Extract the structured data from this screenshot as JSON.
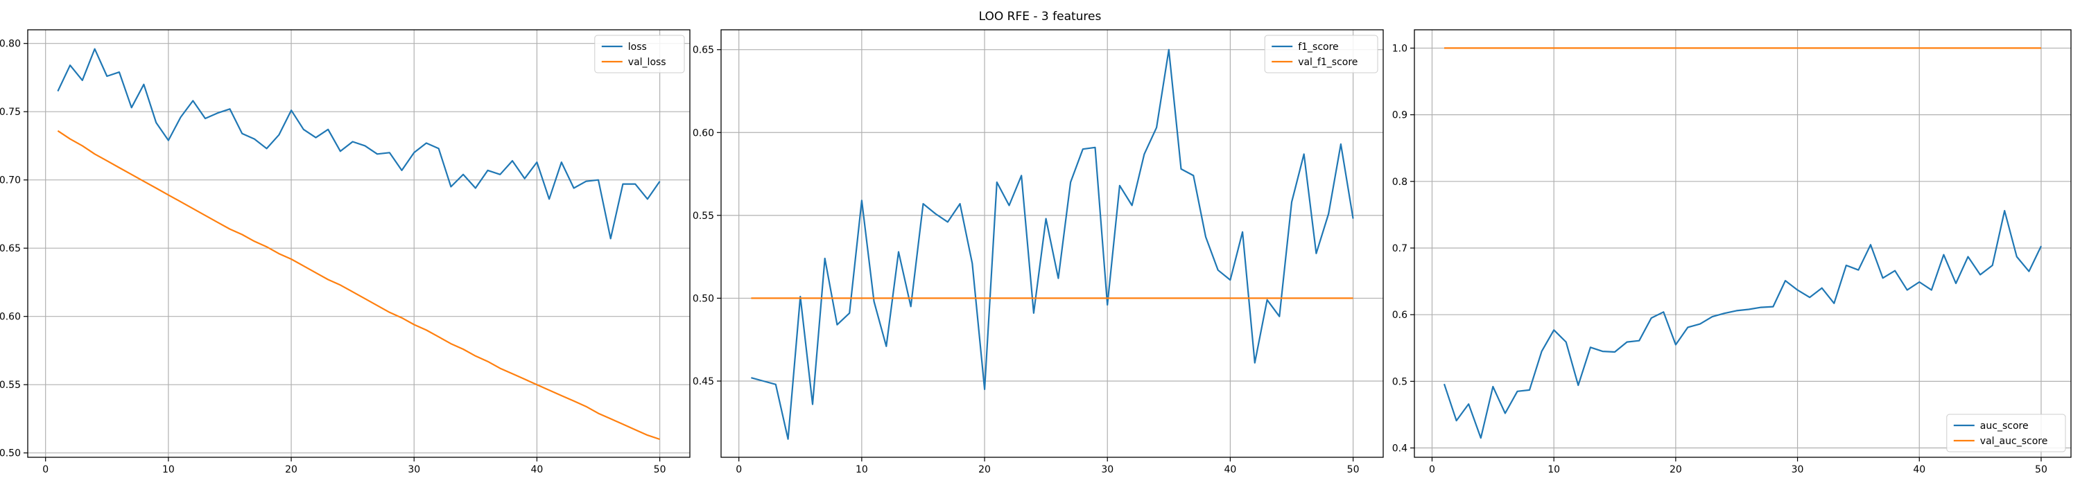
{
  "figure": {
    "suptitle": "LOO RFE - 3 features"
  },
  "colors": {
    "series1": "#1f77b4",
    "series2": "#ff7f0e",
    "grid": "#b0b0b0"
  },
  "chart_data": [
    {
      "type": "line",
      "xlim": [
        -1.45,
        52.45
      ],
      "ylim": [
        0.4968,
        0.81
      ],
      "xticks": [
        0,
        10,
        20,
        30,
        40,
        50
      ],
      "yticks": [
        0.5,
        0.55,
        0.6,
        0.65,
        0.7,
        0.75,
        0.8
      ],
      "ytick_decimals": 2,
      "grid": true,
      "legend": "top-right",
      "x": [
        1,
        2,
        3,
        4,
        5,
        6,
        7,
        8,
        9,
        10,
        11,
        12,
        13,
        14,
        15,
        16,
        17,
        18,
        19,
        20,
        21,
        22,
        23,
        24,
        25,
        26,
        27,
        28,
        29,
        30,
        31,
        32,
        33,
        34,
        35,
        36,
        37,
        38,
        39,
        40,
        41,
        42,
        43,
        44,
        45,
        46,
        47,
        48,
        49,
        50
      ],
      "series": [
        {
          "name": "loss",
          "color_key": "series1",
          "values": [
            0.765,
            0.784,
            0.773,
            0.796,
            0.776,
            0.779,
            0.753,
            0.77,
            0.742,
            0.729,
            0.746,
            0.758,
            0.745,
            0.749,
            0.752,
            0.734,
            0.73,
            0.723,
            0.733,
            0.751,
            0.737,
            0.731,
            0.737,
            0.721,
            0.728,
            0.725,
            0.719,
            0.72,
            0.707,
            0.72,
            0.727,
            0.723,
            0.695,
            0.704,
            0.694,
            0.707,
            0.704,
            0.714,
            0.701,
            0.713,
            0.686,
            0.713,
            0.694,
            0.699,
            0.7,
            0.657,
            0.697,
            0.697,
            0.686,
            0.699
          ]
        },
        {
          "name": "val_loss",
          "color_key": "series2",
          "values": [
            0.736,
            0.73,
            0.725,
            0.719,
            0.714,
            0.709,
            0.704,
            0.699,
            0.694,
            0.689,
            0.684,
            0.679,
            0.674,
            0.669,
            0.664,
            0.66,
            0.655,
            0.651,
            0.646,
            0.642,
            0.637,
            0.632,
            0.627,
            0.623,
            0.618,
            0.613,
            0.608,
            0.603,
            0.599,
            0.594,
            0.59,
            0.585,
            0.58,
            0.576,
            0.571,
            0.567,
            0.562,
            0.558,
            0.554,
            0.55,
            0.546,
            0.542,
            0.538,
            0.534,
            0.529,
            0.525,
            0.521,
            0.517,
            0.513,
            0.51
          ]
        }
      ]
    },
    {
      "type": "line",
      "xlim": [
        -1.45,
        52.45
      ],
      "ylim": [
        0.404,
        0.662
      ],
      "xticks": [
        0,
        10,
        20,
        30,
        40,
        50
      ],
      "yticks": [
        0.45,
        0.5,
        0.55,
        0.6,
        0.65
      ],
      "ytick_decimals": 2,
      "grid": true,
      "legend": "top-right",
      "x": [
        1,
        2,
        3,
        4,
        5,
        6,
        7,
        8,
        9,
        10,
        11,
        12,
        13,
        14,
        15,
        16,
        17,
        18,
        19,
        20,
        21,
        22,
        23,
        24,
        25,
        26,
        27,
        28,
        29,
        30,
        31,
        32,
        33,
        34,
        35,
        36,
        37,
        38,
        39,
        40,
        41,
        42,
        43,
        44,
        45,
        46,
        47,
        48,
        49,
        50
      ],
      "series": [
        {
          "name": "f1_score",
          "color_key": "series1",
          "values": [
            0.452,
            0.45,
            0.448,
            0.415,
            0.501,
            0.436,
            0.524,
            0.484,
            0.491,
            0.559,
            0.498,
            0.471,
            0.528,
            0.495,
            0.557,
            0.551,
            0.546,
            0.557,
            0.521,
            0.445,
            0.57,
            0.556,
            0.574,
            0.491,
            0.548,
            0.512,
            0.57,
            0.59,
            0.591,
            0.496,
            0.568,
            0.556,
            0.587,
            0.603,
            0.65,
            0.578,
            0.574,
            0.537,
            0.517,
            0.511,
            0.54,
            0.461,
            0.499,
            0.489,
            0.558,
            0.587,
            0.527,
            0.551,
            0.593,
            0.548
          ]
        },
        {
          "name": "val_f1_score",
          "color_key": "series2",
          "values": [
            0.5,
            0.5,
            0.5,
            0.5,
            0.5,
            0.5,
            0.5,
            0.5,
            0.5,
            0.5,
            0.5,
            0.5,
            0.5,
            0.5,
            0.5,
            0.5,
            0.5,
            0.5,
            0.5,
            0.5,
            0.5,
            0.5,
            0.5,
            0.5,
            0.5,
            0.5,
            0.5,
            0.5,
            0.5,
            0.5,
            0.5,
            0.5,
            0.5,
            0.5,
            0.5,
            0.5,
            0.5,
            0.5,
            0.5,
            0.5,
            0.5,
            0.5,
            0.5,
            0.5,
            0.5,
            0.5,
            0.5,
            0.5,
            0.5,
            0.5
          ]
        }
      ]
    },
    {
      "type": "line",
      "xlim": [
        -1.45,
        52.45
      ],
      "ylim": [
        0.386,
        1.0275
      ],
      "xticks": [
        0,
        10,
        20,
        30,
        40,
        50
      ],
      "yticks": [
        0.4,
        0.5,
        0.6,
        0.7,
        0.8,
        0.9,
        1.0
      ],
      "ytick_decimals": 1,
      "grid": true,
      "legend": "bottom-right",
      "x": [
        1,
        2,
        3,
        4,
        5,
        6,
        7,
        8,
        9,
        10,
        11,
        12,
        13,
        14,
        15,
        16,
        17,
        18,
        19,
        20,
        21,
        22,
        23,
        24,
        25,
        26,
        27,
        28,
        29,
        30,
        31,
        32,
        33,
        34,
        35,
        36,
        37,
        38,
        39,
        40,
        41,
        42,
        43,
        44,
        45,
        46,
        47,
        48,
        49,
        50
      ],
      "series": [
        {
          "name": "auc_score",
          "color_key": "series1",
          "values": [
            0.496,
            0.441,
            0.466,
            0.415,
            0.492,
            0.452,
            0.485,
            0.487,
            0.545,
            0.577,
            0.559,
            0.494,
            0.551,
            0.545,
            0.544,
            0.559,
            0.561,
            0.595,
            0.604,
            0.555,
            0.581,
            0.586,
            0.597,
            0.602,
            0.606,
            0.608,
            0.611,
            0.612,
            0.651,
            0.637,
            0.626,
            0.64,
            0.617,
            0.674,
            0.667,
            0.705,
            0.655,
            0.666,
            0.637,
            0.649,
            0.637,
            0.69,
            0.647,
            0.687,
            0.66,
            0.674,
            0.756,
            0.687,
            0.665,
            0.703
          ]
        },
        {
          "name": "val_auc_score",
          "color_key": "series2",
          "values": [
            1.0,
            1.0,
            1.0,
            1.0,
            1.0,
            1.0,
            1.0,
            1.0,
            1.0,
            1.0,
            1.0,
            1.0,
            1.0,
            1.0,
            1.0,
            1.0,
            1.0,
            1.0,
            1.0,
            1.0,
            1.0,
            1.0,
            1.0,
            1.0,
            1.0,
            1.0,
            1.0,
            1.0,
            1.0,
            1.0,
            1.0,
            1.0,
            1.0,
            1.0,
            1.0,
            1.0,
            1.0,
            1.0,
            1.0,
            1.0,
            1.0,
            1.0,
            1.0,
            1.0,
            1.0,
            1.0,
            1.0,
            1.0,
            1.0,
            1.0
          ]
        }
      ]
    }
  ]
}
